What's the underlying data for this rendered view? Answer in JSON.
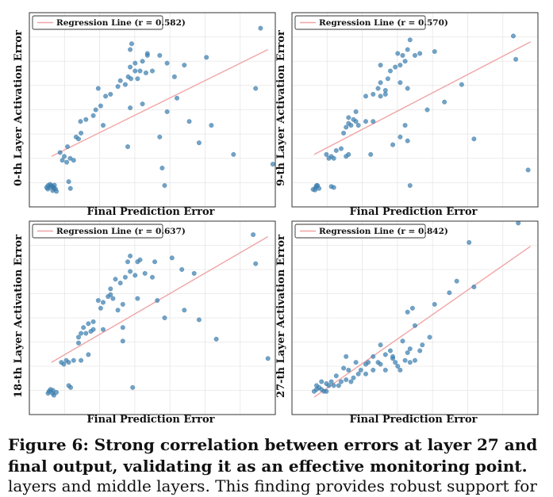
{
  "caption": "Figure 6: Strong correlation between errors at layer 27 and final output, validating it as an effective monitoring point.",
  "caption_next_line": "layers and middle layers. This finding provides robust support for",
  "colors": {
    "point": "#3b7fb0",
    "line": "#f0a5a5",
    "grid": "#e6e6e6",
    "frame": "#333333"
  },
  "chart_data": [
    {
      "type": "scatter",
      "xlabel": "Final Prediction Error",
      "ylabel": "0-th Layer  Activation Error",
      "legend": "Regression Line (r = 0.582)",
      "legend_position": "top-left",
      "grid": true,
      "xlim": [
        0,
        1
      ],
      "ylim": [
        0,
        1
      ],
      "regression": [
        [
          0.09,
          0.26
        ],
        [
          0.97,
          0.81
        ]
      ],
      "points": [
        [
          0.096,
          0.104
        ],
        [
          0.082,
          0.1
        ],
        [
          0.09,
          0.11
        ],
        [
          0.1,
          0.095
        ],
        [
          0.084,
          0.116
        ],
        [
          0.075,
          0.092
        ],
        [
          0.102,
          0.112
        ],
        [
          0.095,
          0.084
        ],
        [
          0.106,
          0.093
        ],
        [
          0.11,
          0.08
        ],
        [
          0.076,
          0.11
        ],
        [
          0.07,
          0.1
        ],
        [
          0.16,
          0.13
        ],
        [
          0.167,
          0.095
        ],
        [
          0.18,
          0.24
        ],
        [
          0.142,
          0.26
        ],
        [
          0.152,
          0.23
        ],
        [
          0.134,
          0.24
        ],
        [
          0.125,
          0.28
        ],
        [
          0.166,
          0.25
        ],
        [
          0.155,
          0.31
        ],
        [
          0.2,
          0.35
        ],
        [
          0.19,
          0.36
        ],
        [
          0.21,
          0.38
        ],
        [
          0.208,
          0.44
        ],
        [
          0.23,
          0.45
        ],
        [
          0.26,
          0.47
        ],
        [
          0.27,
          0.5
        ],
        [
          0.29,
          0.52
        ],
        [
          0.31,
          0.57
        ],
        [
          0.28,
          0.61
        ],
        [
          0.33,
          0.58
        ],
        [
          0.36,
          0.62
        ],
        [
          0.37,
          0.65
        ],
        [
          0.39,
          0.63
        ],
        [
          0.402,
          0.67
        ],
        [
          0.41,
          0.72
        ],
        [
          0.413,
          0.66
        ],
        [
          0.43,
          0.7
        ],
        [
          0.45,
          0.7
        ],
        [
          0.474,
          0.69
        ],
        [
          0.5,
          0.7
        ],
        [
          0.48,
          0.78
        ],
        [
          0.41,
          0.81
        ],
        [
          0.416,
          0.84
        ],
        [
          0.3,
          0.42
        ],
        [
          0.41,
          0.51
        ],
        [
          0.46,
          0.53
        ],
        [
          0.53,
          0.78
        ],
        [
          0.56,
          0.74
        ],
        [
          0.59,
          0.67
        ],
        [
          0.44,
          0.66
        ],
        [
          0.48,
          0.79
        ],
        [
          0.46,
          0.75
        ],
        [
          0.43,
          0.74
        ],
        [
          0.63,
          0.73
        ],
        [
          0.72,
          0.77
        ],
        [
          0.65,
          0.44
        ],
        [
          0.6,
          0.56
        ],
        [
          0.56,
          0.49
        ],
        [
          0.74,
          0.42
        ],
        [
          0.69,
          0.33
        ],
        [
          0.83,
          0.27
        ],
        [
          0.92,
          0.61
        ],
        [
          0.94,
          0.92
        ],
        [
          0.99,
          0.22
        ],
        [
          0.53,
          0.36
        ],
        [
          0.55,
          0.11
        ],
        [
          0.54,
          0.2
        ],
        [
          0.4,
          0.31
        ]
      ]
    },
    {
      "type": "scatter",
      "xlabel": "Final Prediction Error",
      "ylabel": "9-th Layer  Activation Error",
      "legend": "Regression Line (r = 0.570)",
      "legend_position": "top-left",
      "grid": true,
      "xlim": [
        0,
        1
      ],
      "ylim": [
        0,
        1
      ],
      "regression": [
        [
          0.09,
          0.27
        ],
        [
          0.97,
          0.85
        ]
      ],
      "points": [
        [
          0.096,
          0.1
        ],
        [
          0.086,
          0.09
        ],
        [
          0.1,
          0.11
        ],
        [
          0.11,
          0.095
        ],
        [
          0.094,
          0.087
        ],
        [
          0.104,
          0.11
        ],
        [
          0.16,
          0.105
        ],
        [
          0.17,
          0.1
        ],
        [
          0.14,
          0.27
        ],
        [
          0.15,
          0.25
        ],
        [
          0.16,
          0.26
        ],
        [
          0.17,
          0.25
        ],
        [
          0.18,
          0.29
        ],
        [
          0.2,
          0.3
        ],
        [
          0.22,
          0.26
        ],
        [
          0.23,
          0.27
        ],
        [
          0.21,
          0.38
        ],
        [
          0.22,
          0.41
        ],
        [
          0.24,
          0.42
        ],
        [
          0.27,
          0.42
        ],
        [
          0.26,
          0.44
        ],
        [
          0.23,
          0.43
        ],
        [
          0.25,
          0.45
        ],
        [
          0.23,
          0.46
        ],
        [
          0.26,
          0.49
        ],
        [
          0.3,
          0.44
        ],
        [
          0.3,
          0.57
        ],
        [
          0.33,
          0.58
        ],
        [
          0.35,
          0.61
        ],
        [
          0.36,
          0.57
        ],
        [
          0.38,
          0.6
        ],
        [
          0.36,
          0.64
        ],
        [
          0.39,
          0.66
        ],
        [
          0.4,
          0.7
        ],
        [
          0.42,
          0.72
        ],
        [
          0.44,
          0.73
        ],
        [
          0.46,
          0.75
        ],
        [
          0.43,
          0.79
        ],
        [
          0.47,
          0.81
        ],
        [
          0.48,
          0.86
        ],
        [
          0.45,
          0.78
        ],
        [
          0.36,
          0.73
        ],
        [
          0.38,
          0.58
        ],
        [
          0.44,
          0.64
        ],
        [
          0.47,
          0.61
        ],
        [
          0.52,
          0.79
        ],
        [
          0.58,
          0.8
        ],
        [
          0.5,
          0.78
        ],
        [
          0.55,
          0.5
        ],
        [
          0.62,
          0.54
        ],
        [
          0.46,
          0.42
        ],
        [
          0.41,
          0.32
        ],
        [
          0.47,
          0.34
        ],
        [
          0.44,
          0.36
        ],
        [
          0.69,
          0.63
        ],
        [
          0.74,
          0.35
        ],
        [
          0.9,
          0.88
        ],
        [
          0.91,
          0.76
        ],
        [
          0.96,
          0.19
        ],
        [
          0.48,
          0.11
        ],
        [
          0.32,
          0.27
        ],
        [
          0.33,
          0.44
        ]
      ]
    },
    {
      "type": "scatter",
      "xlabel": "Final Prediction Error",
      "ylabel": "18-th Layer  Activation Error",
      "legend": "Regression Line (r = 0.637)",
      "legend_position": "top-left",
      "grid": true,
      "xlim": [
        0,
        1
      ],
      "ylim": [
        0,
        1
      ],
      "regression": [
        [
          0.09,
          0.27
        ],
        [
          0.97,
          0.92
        ]
      ],
      "points": [
        [
          0.094,
          0.11
        ],
        [
          0.08,
          0.12
        ],
        [
          0.1,
          0.1
        ],
        [
          0.11,
          0.115
        ],
        [
          0.086,
          0.13
        ],
        [
          0.096,
          0.125
        ],
        [
          0.076,
          0.11
        ],
        [
          0.16,
          0.15
        ],
        [
          0.168,
          0.14
        ],
        [
          0.14,
          0.26
        ],
        [
          0.15,
          0.28
        ],
        [
          0.16,
          0.27
        ],
        [
          0.13,
          0.27
        ],
        [
          0.18,
          0.28
        ],
        [
          0.21,
          0.28
        ],
        [
          0.24,
          0.31
        ],
        [
          0.2,
          0.37
        ],
        [
          0.2,
          0.4
        ],
        [
          0.21,
          0.42
        ],
        [
          0.23,
          0.42
        ],
        [
          0.22,
          0.45
        ],
        [
          0.25,
          0.43
        ],
        [
          0.26,
          0.44
        ],
        [
          0.24,
          0.47
        ],
        [
          0.26,
          0.48
        ],
        [
          0.3,
          0.44
        ],
        [
          0.28,
          0.59
        ],
        [
          0.32,
          0.61
        ],
        [
          0.34,
          0.6
        ],
        [
          0.29,
          0.55
        ],
        [
          0.3,
          0.58
        ],
        [
          0.33,
          0.65
        ],
        [
          0.35,
          0.7
        ],
        [
          0.37,
          0.68
        ],
        [
          0.39,
          0.71
        ],
        [
          0.41,
          0.74
        ],
        [
          0.4,
          0.79
        ],
        [
          0.41,
          0.82
        ],
        [
          0.44,
          0.79
        ],
        [
          0.45,
          0.8
        ],
        [
          0.43,
          0.72
        ],
        [
          0.47,
          0.73
        ],
        [
          0.5,
          0.71
        ],
        [
          0.38,
          0.57
        ],
        [
          0.36,
          0.54
        ],
        [
          0.44,
          0.6
        ],
        [
          0.52,
          0.59
        ],
        [
          0.51,
          0.79
        ],
        [
          0.55,
          0.5
        ],
        [
          0.62,
          0.75
        ],
        [
          0.58,
          0.81
        ],
        [
          0.63,
          0.54
        ],
        [
          0.67,
          0.73
        ],
        [
          0.69,
          0.49
        ],
        [
          0.76,
          0.39
        ],
        [
          0.91,
          0.93
        ],
        [
          0.92,
          0.78
        ],
        [
          0.97,
          0.29
        ],
        [
          0.38,
          0.38
        ],
        [
          0.42,
          0.14
        ],
        [
          0.38,
          0.45
        ],
        [
          0.33,
          0.62
        ]
      ]
    },
    {
      "type": "scatter",
      "xlabel": "Final Prediction Error",
      "ylabel": "27-th Layer  Activation Error",
      "legend": "Regression Line (r = 0.842)",
      "legend_position": "top-left",
      "grid": true,
      "xlim": [
        0,
        1
      ],
      "ylim": [
        0,
        1
      ],
      "regression": [
        [
          0.09,
          0.09
        ],
        [
          0.97,
          0.87
        ]
      ],
      "points": [
        [
          0.09,
          0.12
        ],
        [
          0.1,
          0.13
        ],
        [
          0.11,
          0.14
        ],
        [
          0.12,
          0.13
        ],
        [
          0.13,
          0.12
        ],
        [
          0.14,
          0.16
        ],
        [
          0.15,
          0.15
        ],
        [
          0.16,
          0.17
        ],
        [
          0.12,
          0.17
        ],
        [
          0.1,
          0.15
        ],
        [
          0.14,
          0.12
        ],
        [
          0.17,
          0.15
        ],
        [
          0.19,
          0.15
        ],
        [
          0.2,
          0.17
        ],
        [
          0.22,
          0.18
        ],
        [
          0.24,
          0.17
        ],
        [
          0.25,
          0.19
        ],
        [
          0.23,
          0.23
        ],
        [
          0.21,
          0.24
        ],
        [
          0.22,
          0.3
        ],
        [
          0.26,
          0.27
        ],
        [
          0.28,
          0.23
        ],
        [
          0.3,
          0.21
        ],
        [
          0.3,
          0.26
        ],
        [
          0.31,
          0.27
        ],
        [
          0.33,
          0.23
        ],
        [
          0.33,
          0.3
        ],
        [
          0.35,
          0.27
        ],
        [
          0.36,
          0.26
        ],
        [
          0.38,
          0.23
        ],
        [
          0.38,
          0.31
        ],
        [
          0.4,
          0.33
        ],
        [
          0.41,
          0.29
        ],
        [
          0.42,
          0.27
        ],
        [
          0.43,
          0.25
        ],
        [
          0.44,
          0.23
        ],
        [
          0.46,
          0.28
        ],
        [
          0.47,
          0.32
        ],
        [
          0.48,
          0.34
        ],
        [
          0.48,
          0.27
        ],
        [
          0.5,
          0.28
        ],
        [
          0.45,
          0.38
        ],
        [
          0.47,
          0.53
        ],
        [
          0.49,
          0.55
        ],
        [
          0.5,
          0.46
        ],
        [
          0.52,
          0.33
        ],
        [
          0.53,
          0.36
        ],
        [
          0.56,
          0.4
        ],
        [
          0.58,
          0.57
        ],
        [
          0.64,
          0.63
        ],
        [
          0.67,
          0.69
        ],
        [
          0.72,
          0.89
        ],
        [
          0.74,
          0.66
        ],
        [
          0.92,
          0.99
        ],
        [
          0.18,
          0.2
        ],
        [
          0.27,
          0.21
        ],
        [
          0.36,
          0.36
        ],
        [
          0.41,
          0.3
        ]
      ]
    }
  ]
}
